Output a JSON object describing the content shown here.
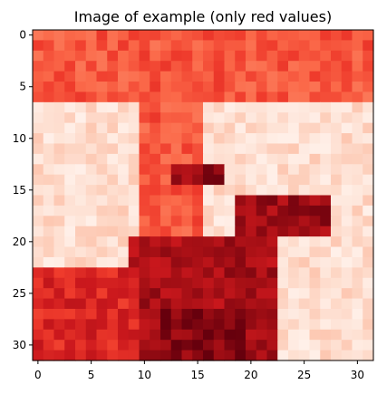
{
  "chart_data": {
    "type": "heatmap",
    "title": "Image of example (only red values)",
    "colormap": "Reds",
    "value_range": [
      0,
      1
    ],
    "rows": 32,
    "cols": 32,
    "xticks": [
      0,
      5,
      10,
      15,
      20,
      25,
      30
    ],
    "yticks": [
      0,
      5,
      10,
      15,
      20,
      25,
      30
    ],
    "xlim": [
      -0.5,
      31.5
    ],
    "ylim": [
      31.5,
      -0.5
    ],
    "grid": false,
    "legend": "none",
    "regions_description": [
      {
        "rows": [
          0,
          6
        ],
        "cols": [
          0,
          31
        ],
        "level": 0.55
      },
      {
        "rows": [
          7,
          31
        ],
        "cols": [
          0,
          31
        ],
        "level": 0.12
      },
      {
        "rows": [
          7,
          31
        ],
        "cols": [
          10,
          15
        ],
        "level": 0.55
      },
      {
        "rows": [
          13,
          14
        ],
        "cols": [
          13,
          17
        ],
        "level": 0.9
      },
      {
        "rows": [
          16,
          19
        ],
        "cols": [
          19,
          27
        ],
        "level": 0.88
      },
      {
        "rows": [
          20,
          31
        ],
        "cols": [
          9,
          22
        ],
        "level": 0.85
      },
      {
        "rows": [
          27,
          31
        ],
        "cols": [
          12,
          19
        ],
        "level": 0.95
      },
      {
        "rows": [
          23,
          31
        ],
        "cols": [
          0,
          9
        ],
        "level": 0.7
      }
    ]
  }
}
